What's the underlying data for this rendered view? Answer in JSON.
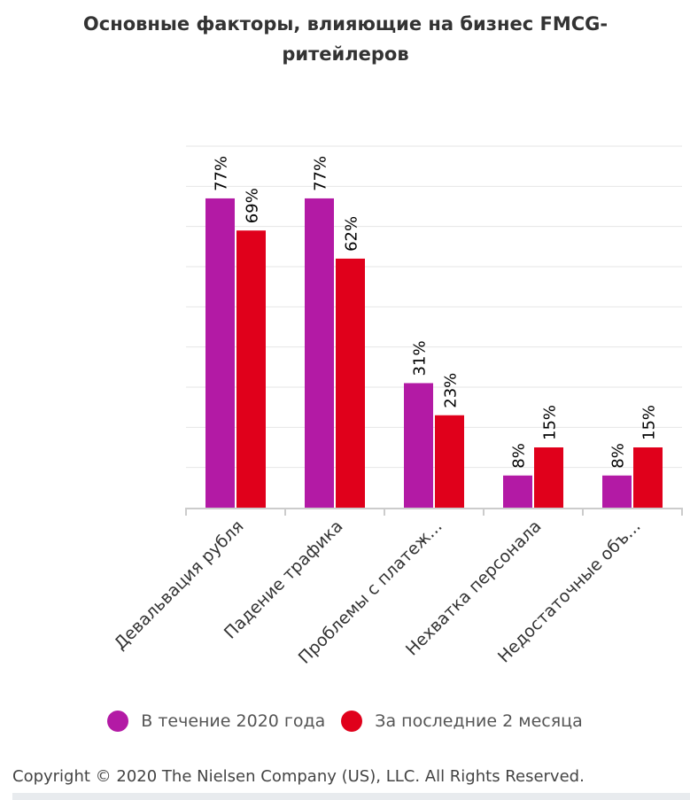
{
  "chart_data": {
    "type": "bar",
    "title": "Основные факторы, влияющие на бизнес FMCG-ритейлеров",
    "categories": [
      "Девальвация рубля",
      "Падение трафика",
      "Проблемы с платеж...",
      "Нехватка персонала",
      "Недостаточные объ..."
    ],
    "series": [
      {
        "name": "В течение 2020 года",
        "color": "#b31aa5",
        "values": [
          77,
          77,
          31,
          8,
          8
        ],
        "labels": [
          "77%",
          "77%",
          "31%",
          "8%",
          "8%"
        ]
      },
      {
        "name": "За последние 2 месяца",
        "color": "#e0001b",
        "values": [
          69,
          62,
          23,
          15,
          15
        ],
        "labels": [
          "69%",
          "62%",
          "23%",
          "15%",
          "15%"
        ]
      }
    ],
    "ylim": [
      0,
      90
    ],
    "grid": true,
    "legend": "bottom"
  },
  "footer": {
    "copyright": "Copyright © 2020 The Nielsen Company (US), LLC. All Rights Reserved."
  }
}
